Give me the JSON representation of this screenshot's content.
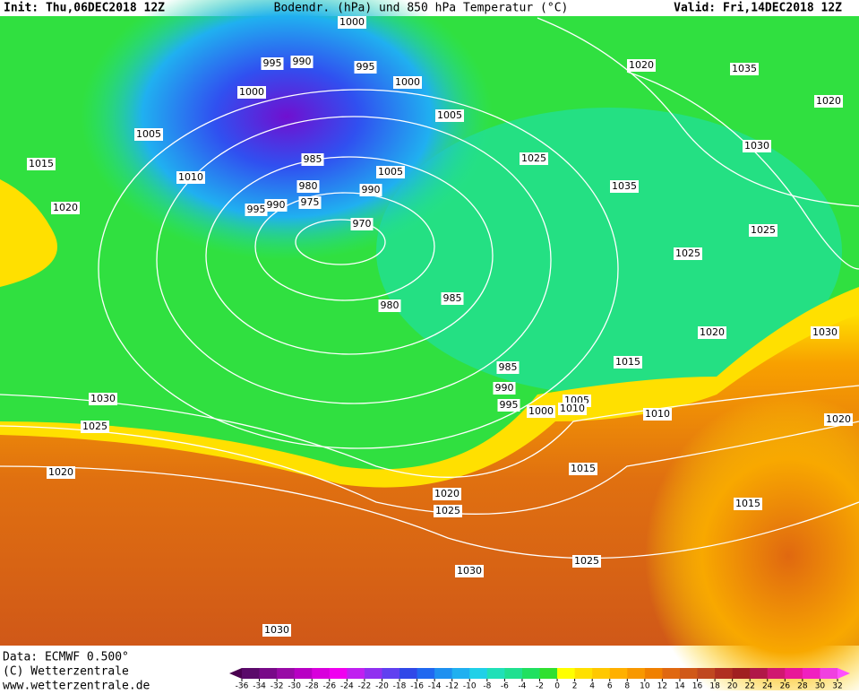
{
  "header": {
    "init": "Init: Thu,06DEC2018 12Z",
    "title": "Bodendr. (hPa) und 850 hPa Temperatur (°C)",
    "valid": "Valid: Fri,14DEC2018 12Z"
  },
  "footer": {
    "data": "Data: ECMWF  0.500°",
    "copyright": "(C) Wetterzentrale",
    "url": "www.wetterzentrale.de"
  },
  "colorbar": {
    "ticks": [
      -36,
      -34,
      -32,
      -30,
      -28,
      -26,
      -24,
      -22,
      -20,
      -18,
      -16,
      -14,
      -12,
      -10,
      -8,
      -6,
      -4,
      -2,
      0,
      2,
      4,
      6,
      8,
      10,
      12,
      14,
      16,
      18,
      20,
      22,
      24,
      26,
      28,
      30,
      32
    ],
    "colors": [
      "#4a0050",
      "#5a0a6a",
      "#780a88",
      "#980aa6",
      "#b800c4",
      "#d800dc",
      "#f000f0",
      "#c020f0",
      "#9030f0",
      "#6040f0",
      "#3048e8",
      "#2068f0",
      "#1e90f0",
      "#20b0f0",
      "#20d0e8",
      "#20e0b8",
      "#20e090",
      "#20e060",
      "#30e030",
      "#ffff00",
      "#ffe000",
      "#ffc800",
      "#ffb000",
      "#f89800",
      "#f08000",
      "#e06810",
      "#d05818",
      "#c04820",
      "#b03020",
      "#a02020",
      "#b01848",
      "#d01870",
      "#e81898",
      "#f020c0",
      "#f040e0",
      "#ff50ff"
    ]
  },
  "isobars": [
    "1005",
    "1000",
    "995",
    "990",
    "995",
    "1000",
    "1000",
    "1005",
    "1015",
    "1010",
    "1020",
    "985",
    "980",
    "975",
    "990",
    "970",
    "995",
    "990",
    "1005",
    "1025",
    "1035",
    "1020",
    "1035",
    "1030",
    "1020",
    "1025",
    "1025",
    "1020",
    "1030",
    "1015",
    "980",
    "985",
    "985",
    "990",
    "995",
    "1000",
    "1005",
    "1010",
    "1010",
    "1030",
    "1025",
    "1020",
    "1015",
    "1020",
    "1025",
    "1015",
    "1025",
    "1030",
    "1030",
    "1020"
  ]
}
